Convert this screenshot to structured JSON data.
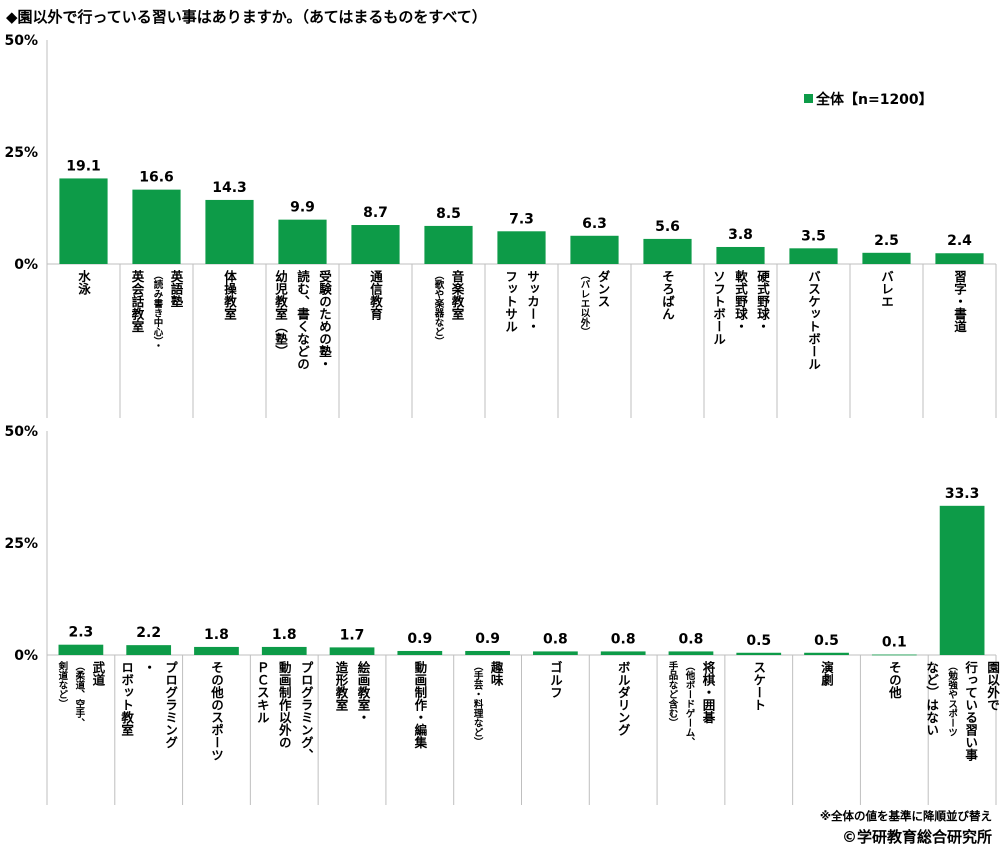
{
  "title": "◆園以外で行っている習い事はありますか。（あてはまるものをすべて）",
  "note": "※全体の値を基準に降順並び替え",
  "credit": "©学研教育総合研究所",
  "colors": {
    "bar": "#0d9b48",
    "axis": "#bfbfbf",
    "text": "#000000"
  },
  "chart_data": [
    {
      "type": "bar",
      "ylim": [
        0,
        50
      ],
      "y_ticks": [
        "50%",
        "25%",
        "0%"
      ],
      "legend": {
        "label": "全体【n=1200】",
        "position": "top-right"
      },
      "series": [
        {
          "name": "全体【n=1200】",
          "values": [
            19.1,
            16.6,
            14.3,
            9.9,
            8.7,
            8.5,
            7.3,
            6.3,
            5.6,
            3.8,
            3.5,
            2.5,
            2.4
          ]
        }
      ],
      "categories": [
        {
          "lines": [
            {
              "t": "水泳",
              "s": "big"
            }
          ]
        },
        {
          "lines": [
            {
              "t": "英語塾",
              "s": "big"
            },
            {
              "t": "（読み書き中心）・",
              "s": "small"
            },
            {
              "t": "英会話教室",
              "s": "big"
            }
          ]
        },
        {
          "lines": [
            {
              "t": "体操教室",
              "s": "big"
            }
          ]
        },
        {
          "lines": [
            {
              "t": "受験のための塾・",
              "s": "big"
            },
            {
              "t": "読む、書くなどの",
              "s": "big"
            },
            {
              "t": "幼児教室（塾）",
              "s": "big"
            }
          ]
        },
        {
          "lines": [
            {
              "t": "通信教育",
              "s": "big"
            }
          ]
        },
        {
          "lines": [
            {
              "t": "音楽教室",
              "s": "big"
            },
            {
              "t": "（歌や楽器など）",
              "s": "small"
            }
          ]
        },
        {
          "lines": [
            {
              "t": "サッカー・",
              "s": "big"
            },
            {
              "t": "フットサル",
              "s": "big"
            }
          ]
        },
        {
          "lines": [
            {
              "t": "ダンス",
              "s": "big"
            },
            {
              "t": "（バレエ以外）",
              "s": "small"
            }
          ]
        },
        {
          "lines": [
            {
              "t": "そろばん",
              "s": "big"
            }
          ]
        },
        {
          "lines": [
            {
              "t": "硬式野球・",
              "s": "big"
            },
            {
              "t": "軟式野球・",
              "s": "big"
            },
            {
              "t": "ソフトボール",
              "s": "big"
            }
          ]
        },
        {
          "lines": [
            {
              "t": "バスケットボール",
              "s": "big"
            }
          ]
        },
        {
          "lines": [
            {
              "t": "バレエ",
              "s": "big"
            }
          ]
        },
        {
          "lines": [
            {
              "t": "習字・書道",
              "s": "big"
            }
          ]
        }
      ]
    },
    {
      "type": "bar",
      "ylim": [
        0,
        50
      ],
      "y_ticks": [
        "50%",
        "25%",
        "0%"
      ],
      "series": [
        {
          "name": "全体【n=1200】",
          "values": [
            2.3,
            2.2,
            1.8,
            1.8,
            1.7,
            0.9,
            0.9,
            0.8,
            0.8,
            0.8,
            0.5,
            0.5,
            0.1,
            33.3
          ]
        }
      ],
      "categories": [
        {
          "lines": [
            {
              "t": "武道",
              "s": "big"
            },
            {
              "t": "（柔道、空手、",
              "s": "small"
            },
            {
              "t": "剣道など）",
              "s": "small"
            }
          ]
        },
        {
          "lines": [
            {
              "t": "プログラミング",
              "s": "big"
            },
            {
              "t": "・",
              "s": "big"
            },
            {
              "t": "ロボット教室",
              "s": "big"
            }
          ]
        },
        {
          "lines": [
            {
              "t": "その他のスポーツ",
              "s": "big"
            }
          ]
        },
        {
          "lines": [
            {
              "t": "プログラミング、",
              "s": "big"
            },
            {
              "t": "動画制作以外の",
              "s": "big"
            },
            {
              "t": "ＰＣスキル",
              "s": "big"
            }
          ]
        },
        {
          "lines": [
            {
              "t": "絵画教室・",
              "s": "big"
            },
            {
              "t": "造形教室",
              "s": "big"
            }
          ]
        },
        {
          "lines": [
            {
              "t": "動画制作・編集",
              "s": "big"
            }
          ]
        },
        {
          "lines": [
            {
              "t": "趣味",
              "s": "big"
            },
            {
              "t": "（手芸・料理など）",
              "s": "small"
            }
          ]
        },
        {
          "lines": [
            {
              "t": "ゴルフ",
              "s": "big"
            }
          ]
        },
        {
          "lines": [
            {
              "t": "ボルダリング",
              "s": "big"
            }
          ]
        },
        {
          "lines": [
            {
              "t": "将棋・囲碁",
              "s": "big"
            },
            {
              "t": "（他ボードゲーム、",
              "s": "small"
            },
            {
              "t": "手品など含む）",
              "s": "small"
            }
          ]
        },
        {
          "lines": [
            {
              "t": "スケート",
              "s": "big"
            }
          ]
        },
        {
          "lines": [
            {
              "t": "演劇",
              "s": "big"
            }
          ]
        },
        {
          "lines": [
            {
              "t": "その他",
              "s": "big"
            }
          ]
        },
        {
          "lines": [
            {
              "t": "園以外で",
              "s": "big"
            },
            {
              "t": "行っている習い事",
              "s": "big"
            },
            {
              "t": "（勉強やスポーツ",
              "s": "small"
            },
            {
              "t": "など）はない",
              "s": "big"
            }
          ]
        }
      ]
    }
  ]
}
